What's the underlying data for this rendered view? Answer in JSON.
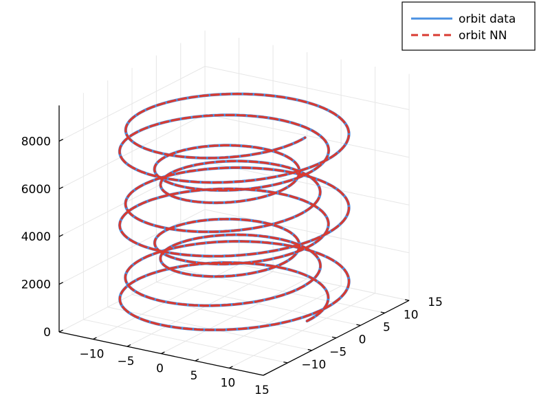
{
  "chart_data": {
    "type": "line",
    "subtype": "3d-line",
    "title": "",
    "xlabel": "",
    "ylabel": "",
    "zlabel": "",
    "xlim": [
      -15,
      15
    ],
    "ylim": [
      -15,
      15
    ],
    "zlim": [
      0,
      9500
    ],
    "x_ticks": [
      "−10",
      "−5",
      "0",
      "5",
      "10",
      "15"
    ],
    "y_ticks": [
      "−10",
      "−5",
      "0",
      "5",
      "10",
      "15"
    ],
    "z_ticks": [
      "0",
      "2000",
      "4000",
      "6000",
      "8000"
    ],
    "grid": true,
    "legend_position": "top-right",
    "model": {
      "description_of_data": "helical orbit: two interleaved turn families whose radius oscillates, rising linearly in z",
      "turns": 10,
      "t_max": 62.8,
      "z_per_unit_t": 123,
      "z_offset": 300,
      "radius_base": 11,
      "radius_amp": 3,
      "radius_period_t": 25.1
    },
    "series": [
      {
        "name": "orbit data",
        "color": "#4a90e2",
        "style": "solid"
      },
      {
        "name": "orbit NN",
        "color": "#d93a30",
        "style": "dashed"
      }
    ]
  }
}
